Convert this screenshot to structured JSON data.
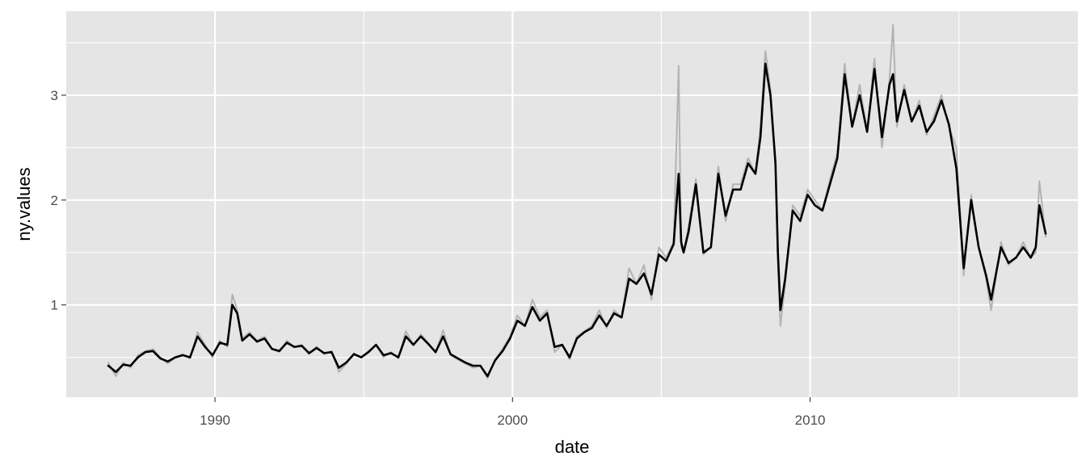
{
  "chart_data": {
    "type": "line",
    "title": "",
    "xlabel": "date",
    "ylabel": "ny.values",
    "xlim": [
      "1985-01-01",
      "2019-01-01"
    ],
    "ylim": [
      0.12,
      3.8
    ],
    "x_ticks": [
      "1990",
      "2000",
      "2010"
    ],
    "x_tick_dates": [
      "1990-01-01",
      "2000-01-01",
      "2010-01-01"
    ],
    "y_ticks": [
      1,
      2,
      3
    ],
    "grid": true,
    "legend": "none",
    "colors": {
      "panel_background": "#E5E5E5",
      "grid": "#FFFFFF",
      "raw_line": "#B3B3B3",
      "smooth_line": "#000000"
    },
    "series": [
      {
        "style": "raw",
        "x": [
          "1986-06-01",
          "1986-09-01",
          "1986-12-01",
          "1987-03-01",
          "1987-06-01",
          "1987-09-01",
          "1987-12-01",
          "1988-03-01",
          "1988-06-01",
          "1988-09-01",
          "1988-12-01",
          "1989-03-01",
          "1989-06-01",
          "1989-09-01",
          "1989-12-01",
          "1990-03-01",
          "1990-06-01",
          "1990-08-01",
          "1990-10-01",
          "1990-12-01",
          "1991-03-01",
          "1991-06-01",
          "1991-09-01",
          "1991-12-01",
          "1992-03-01",
          "1992-06-01",
          "1992-09-01",
          "1992-12-01",
          "1993-03-01",
          "1993-06-01",
          "1993-09-01",
          "1993-12-01",
          "1994-03-01",
          "1994-06-01",
          "1994-09-01",
          "1994-12-01",
          "1995-03-01",
          "1995-06-01",
          "1995-09-01",
          "1995-12-01",
          "1996-03-01",
          "1996-06-01",
          "1996-09-01",
          "1996-12-01",
          "1997-03-01",
          "1997-06-01",
          "1997-09-01",
          "1997-12-01",
          "1998-03-01",
          "1998-06-01",
          "1998-09-01",
          "1998-12-01",
          "1999-03-01",
          "1999-06-01",
          "1999-09-01",
          "1999-12-01",
          "2000-03-01",
          "2000-06-01",
          "2000-09-01",
          "2000-12-01",
          "2001-03-01",
          "2001-06-01",
          "2001-09-01",
          "2001-12-01",
          "2002-03-01",
          "2002-06-01",
          "2002-09-01",
          "2002-12-01",
          "2003-03-01",
          "2003-06-01",
          "2003-09-01",
          "2003-12-01",
          "2004-03-01",
          "2004-06-01",
          "2004-09-01",
          "2004-12-01",
          "2005-03-01",
          "2005-06-01",
          "2005-08-01",
          "2005-09-01",
          "2005-10-01",
          "2005-12-01",
          "2006-03-01",
          "2006-06-01",
          "2006-09-01",
          "2006-12-01",
          "2007-03-01",
          "2007-06-01",
          "2007-09-01",
          "2007-12-01",
          "2008-03-01",
          "2008-05-01",
          "2008-07-01",
          "2008-09-01",
          "2008-11-01",
          "2008-12-01",
          "2009-01-01",
          "2009-03-01",
          "2009-06-01",
          "2009-09-01",
          "2009-12-01",
          "2010-03-01",
          "2010-06-01",
          "2010-09-01",
          "2010-12-01",
          "2011-03-01",
          "2011-06-01",
          "2011-09-01",
          "2011-12-01",
          "2012-03-01",
          "2012-06-01",
          "2012-09-01",
          "2012-10-15",
          "2012-12-01",
          "2013-03-01",
          "2013-06-01",
          "2013-09-01",
          "2013-12-01",
          "2014-03-01",
          "2014-06-01",
          "2014-09-01",
          "2014-12-01",
          "2015-03-01",
          "2015-06-01",
          "2015-09-01",
          "2015-12-01",
          "2016-02-01",
          "2016-06-01",
          "2016-09-01",
          "2016-12-01",
          "2017-03-01",
          "2017-06-01",
          "2017-08-01",
          "2017-09-15",
          "2017-12-01"
        ],
        "values": [
          0.45,
          0.32,
          0.45,
          0.4,
          0.52,
          0.56,
          0.58,
          0.5,
          0.44,
          0.5,
          0.53,
          0.49,
          0.74,
          0.62,
          0.5,
          0.66,
          0.6,
          1.1,
          0.95,
          0.68,
          0.74,
          0.66,
          0.7,
          0.58,
          0.55,
          0.66,
          0.6,
          0.62,
          0.53,
          0.6,
          0.53,
          0.56,
          0.36,
          0.44,
          0.54,
          0.5,
          0.56,
          0.62,
          0.5,
          0.55,
          0.49,
          0.75,
          0.62,
          0.72,
          0.64,
          0.54,
          0.76,
          0.52,
          0.48,
          0.44,
          0.4,
          0.42,
          0.3,
          0.48,
          0.58,
          0.7,
          0.9,
          0.8,
          1.05,
          0.88,
          0.95,
          0.55,
          0.62,
          0.48,
          0.7,
          0.75,
          0.8,
          0.95,
          0.78,
          0.95,
          0.88,
          1.35,
          1.2,
          1.38,
          1.05,
          1.55,
          1.45,
          1.6,
          3.28,
          1.55,
          1.5,
          1.75,
          2.2,
          1.48,
          1.55,
          2.32,
          1.8,
          2.15,
          2.15,
          2.4,
          2.25,
          2.7,
          3.42,
          3.05,
          2.3,
          1.4,
          0.8,
          1.2,
          1.95,
          1.85,
          2.1,
          2.0,
          1.9,
          2.2,
          2.45,
          3.3,
          2.7,
          3.1,
          2.65,
          3.35,
          2.5,
          3.15,
          3.67,
          2.7,
          3.1,
          2.75,
          2.95,
          2.62,
          2.8,
          3.0,
          2.7,
          2.5,
          1.28,
          2.05,
          1.55,
          1.25,
          0.95,
          1.6,
          1.38,
          1.45,
          1.6,
          1.45,
          1.5,
          2.18,
          1.65
        ]
      },
      {
        "style": "smooth",
        "x": [
          "1986-06-01",
          "1986-09-01",
          "1986-12-01",
          "1987-03-01",
          "1987-06-01",
          "1987-09-01",
          "1987-12-01",
          "1988-03-01",
          "1988-06-01",
          "1988-09-01",
          "1988-12-01",
          "1989-03-01",
          "1989-06-01",
          "1989-09-01",
          "1989-12-01",
          "1990-03-01",
          "1990-06-01",
          "1990-08-01",
          "1990-10-01",
          "1990-12-01",
          "1991-03-01",
          "1991-06-01",
          "1991-09-01",
          "1991-12-01",
          "1992-03-01",
          "1992-06-01",
          "1992-09-01",
          "1992-12-01",
          "1993-03-01",
          "1993-06-01",
          "1993-09-01",
          "1993-12-01",
          "1994-03-01",
          "1994-06-01",
          "1994-09-01",
          "1994-12-01",
          "1995-03-01",
          "1995-06-01",
          "1995-09-01",
          "1995-12-01",
          "1996-03-01",
          "1996-06-01",
          "1996-09-01",
          "1996-12-01",
          "1997-03-01",
          "1997-06-01",
          "1997-09-01",
          "1997-12-01",
          "1998-03-01",
          "1998-06-01",
          "1998-09-01",
          "1998-12-01",
          "1999-03-01",
          "1999-06-01",
          "1999-09-01",
          "1999-12-01",
          "2000-03-01",
          "2000-06-01",
          "2000-09-01",
          "2000-12-01",
          "2001-03-01",
          "2001-06-01",
          "2001-09-01",
          "2001-12-01",
          "2002-03-01",
          "2002-06-01",
          "2002-09-01",
          "2002-12-01",
          "2003-03-01",
          "2003-06-01",
          "2003-09-01",
          "2003-12-01",
          "2004-03-01",
          "2004-06-01",
          "2004-09-01",
          "2004-12-01",
          "2005-03-01",
          "2005-06-01",
          "2005-08-01",
          "2005-09-01",
          "2005-10-01",
          "2005-12-01",
          "2006-03-01",
          "2006-06-01",
          "2006-09-01",
          "2006-12-01",
          "2007-03-01",
          "2007-06-01",
          "2007-09-01",
          "2007-12-01",
          "2008-03-01",
          "2008-05-01",
          "2008-07-01",
          "2008-09-01",
          "2008-11-01",
          "2008-12-01",
          "2009-01-01",
          "2009-03-01",
          "2009-06-01",
          "2009-09-01",
          "2009-12-01",
          "2010-03-01",
          "2010-06-01",
          "2010-09-01",
          "2010-12-01",
          "2011-03-01",
          "2011-06-01",
          "2011-09-01",
          "2011-12-01",
          "2012-03-01",
          "2012-06-01",
          "2012-09-01",
          "2012-10-15",
          "2012-12-01",
          "2013-03-01",
          "2013-06-01",
          "2013-09-01",
          "2013-12-01",
          "2014-03-01",
          "2014-06-01",
          "2014-09-01",
          "2014-12-01",
          "2015-03-01",
          "2015-06-01",
          "2015-09-01",
          "2015-12-01",
          "2016-02-01",
          "2016-06-01",
          "2016-09-01",
          "2016-12-01",
          "2017-03-01",
          "2017-06-01",
          "2017-08-01",
          "2017-09-15",
          "2017-12-01"
        ],
        "values": [
          0.42,
          0.36,
          0.43,
          0.42,
          0.5,
          0.55,
          0.56,
          0.49,
          0.46,
          0.5,
          0.52,
          0.5,
          0.7,
          0.6,
          0.52,
          0.64,
          0.62,
          1.0,
          0.92,
          0.66,
          0.72,
          0.65,
          0.68,
          0.58,
          0.56,
          0.64,
          0.6,
          0.61,
          0.54,
          0.59,
          0.54,
          0.55,
          0.4,
          0.45,
          0.53,
          0.5,
          0.55,
          0.62,
          0.52,
          0.54,
          0.5,
          0.7,
          0.62,
          0.7,
          0.63,
          0.55,
          0.7,
          0.53,
          0.49,
          0.45,
          0.42,
          0.42,
          0.32,
          0.47,
          0.56,
          0.68,
          0.85,
          0.8,
          0.98,
          0.85,
          0.92,
          0.6,
          0.62,
          0.5,
          0.68,
          0.74,
          0.78,
          0.9,
          0.8,
          0.92,
          0.88,
          1.25,
          1.2,
          1.3,
          1.1,
          1.48,
          1.42,
          1.58,
          2.25,
          1.6,
          1.5,
          1.7,
          2.15,
          1.5,
          1.55,
          2.25,
          1.85,
          2.1,
          2.1,
          2.35,
          2.25,
          2.6,
          3.3,
          3.0,
          2.35,
          1.5,
          0.95,
          1.25,
          1.9,
          1.8,
          2.05,
          1.95,
          1.9,
          2.15,
          2.4,
          3.2,
          2.7,
          3.0,
          2.65,
          3.25,
          2.6,
          3.1,
          3.2,
          2.75,
          3.05,
          2.75,
          2.9,
          2.65,
          2.75,
          2.95,
          2.72,
          2.3,
          1.35,
          2.0,
          1.55,
          1.28,
          1.05,
          1.55,
          1.4,
          1.45,
          1.55,
          1.45,
          1.55,
          1.95,
          1.68
        ]
      }
    ]
  }
}
